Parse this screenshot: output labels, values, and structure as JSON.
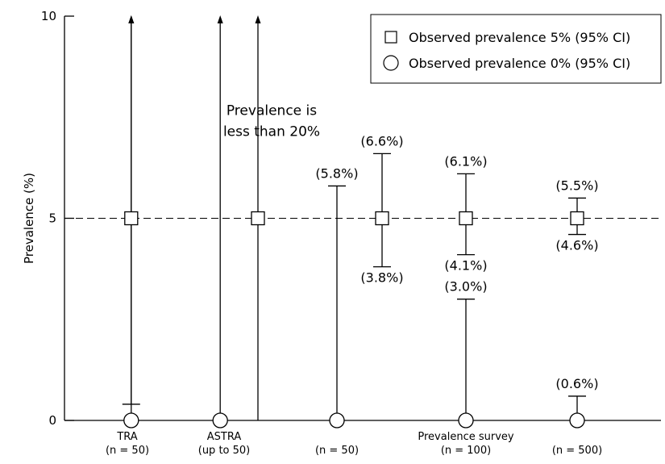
{
  "chart_data": {
    "type": "errorbar",
    "ylabel": "Prevalence (%)",
    "ylim": [
      0,
      10
    ],
    "yticks": [
      "0",
      "5",
      "10"
    ],
    "reference_line": 5,
    "grid": false,
    "legend_position": "top-right",
    "legend": [
      {
        "marker": "square",
        "label": "Observed prevalence 5% (95% CI)"
      },
      {
        "marker": "circle",
        "label": "Observed prevalence 0% (95% CI)"
      }
    ],
    "categories": [
      {
        "lines": [
          "TRA",
          "(n = 50)"
        ]
      },
      {
        "lines": [
          "ASTRA",
          "(up to 50)"
        ]
      },
      {
        "lines": [
          "",
          "(n = 50)"
        ]
      },
      {
        "lines": [
          "Prevalence survey",
          "(n = 100)"
        ]
      },
      {
        "lines": [
          "",
          "(n = 500)"
        ]
      }
    ],
    "series": [
      {
        "marker": "circle",
        "points": [
          {
            "x": 0.04,
            "y": 0,
            "lower": 0,
            "upper": 10,
            "upper_arrow": true,
            "upper_label": "",
            "lower_label": ""
          },
          {
            "x": 0.96,
            "y": 0,
            "lower": 0,
            "upper": 10,
            "upper_arrow": true,
            "upper_label": "",
            "lower_label": ""
          },
          {
            "x": 2.0,
            "y": 0,
            "lower": 0,
            "upper": 5.8,
            "upper_arrow": false,
            "upper_label": "(5.8%)",
            "lower_label": ""
          },
          {
            "x": 3.0,
            "y": 0,
            "lower": 0,
            "upper": 3.0,
            "upper_arrow": false,
            "upper_label": "(3.0%)",
            "lower_label": ""
          },
          {
            "x": 4.0,
            "y": 0,
            "lower": 0,
            "upper": 0.6,
            "upper_arrow": false,
            "upper_label": "(0.6%)",
            "lower_label": ""
          }
        ]
      },
      {
        "marker": "square",
        "points": [
          {
            "x": 0.04,
            "y": 5,
            "lower": 0.4,
            "upper": 10,
            "upper_arrow": true,
            "upper_label": "",
            "lower_label": ""
          },
          {
            "x": 1.3,
            "y": 5,
            "lower": 0,
            "upper": 10,
            "upper_arrow": true,
            "upper_label": "",
            "lower_label": ""
          },
          {
            "x": 2.35,
            "y": 5,
            "lower": 3.8,
            "upper": 6.6,
            "upper_arrow": false,
            "upper_label": "(6.6%)",
            "lower_label": "(3.8%)"
          },
          {
            "x": 3.0,
            "y": 5,
            "lower": 4.1,
            "upper": 6.1,
            "upper_arrow": false,
            "upper_label": "(6.1%)",
            "lower_label": "(4.1%)"
          },
          {
            "x": 4.0,
            "y": 5,
            "lower": 4.6,
            "upper": 5.5,
            "upper_arrow": false,
            "upper_label": "(5.5%)",
            "lower_label": "(4.6%)"
          }
        ]
      }
    ],
    "annotations": [
      {
        "x": 1.5,
        "y": 7.55,
        "lines": [
          "Prevalence is",
          "less than 20%"
        ]
      }
    ]
  }
}
